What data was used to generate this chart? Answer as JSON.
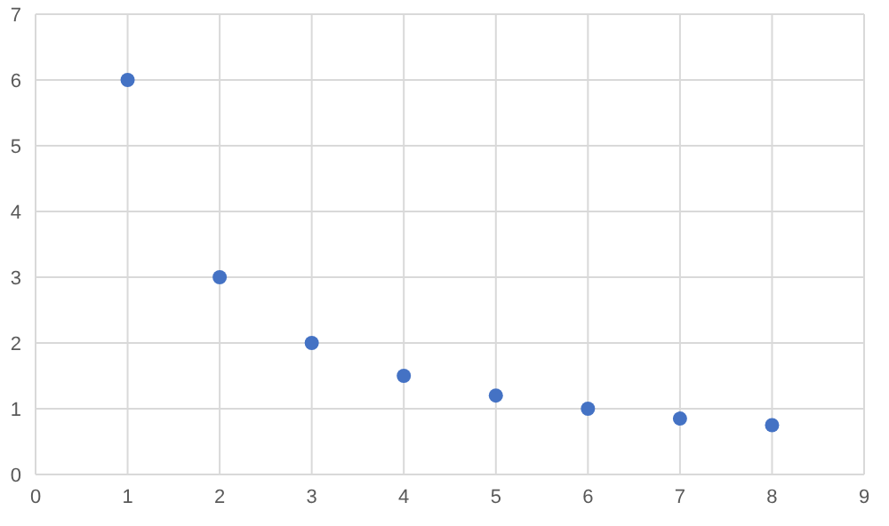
{
  "chart_data": {
    "type": "scatter",
    "x": [
      1,
      2,
      3,
      4,
      5,
      6,
      7,
      8
    ],
    "series": [
      {
        "color": "#4472c4",
        "values": [
          6,
          3,
          2,
          1.5,
          1.2,
          1,
          0.85,
          0.75
        ]
      }
    ],
    "xlim": [
      0,
      9
    ],
    "xticks": [
      0,
      1,
      2,
      3,
      4,
      5,
      6,
      7,
      8,
      9
    ],
    "ylim": [
      0,
      7
    ],
    "yticks": [
      0,
      1,
      2,
      3,
      4,
      5,
      6,
      7
    ],
    "grid": true,
    "marker": "circle",
    "legend": false
  }
}
